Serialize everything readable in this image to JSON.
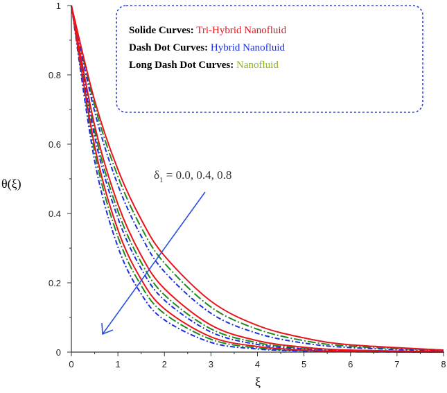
{
  "chart_data": {
    "type": "line",
    "title": "",
    "xlabel": "ξ",
    "ylabel": "θ(ξ)",
    "xlim": [
      0,
      8
    ],
    "ylim": [
      0,
      1
    ],
    "xticks": [
      "0",
      "1",
      "2",
      "3",
      "4",
      "5",
      "6",
      "7",
      "8"
    ],
    "yticks": [
      "0",
      "0.2",
      "0.4",
      "0.6",
      "0.8",
      "1"
    ],
    "x": [
      0,
      0.5,
      1,
      1.5,
      2,
      3,
      4,
      5,
      6,
      8
    ],
    "series": [
      {
        "name": "Tri-Hybrid Nanofluid, δ1=0.0",
        "group": "tri",
        "values": [
          1,
          0.726,
          0.527,
          0.383,
          0.278,
          0.147,
          0.077,
          0.041,
          0.021,
          0.006
        ]
      },
      {
        "name": "Tri-Hybrid Nanofluid, δ1=0.4",
        "group": "tri",
        "values": [
          1,
          0.654,
          0.427,
          0.279,
          0.183,
          0.078,
          0.033,
          0.014,
          0.006,
          0.001
        ]
      },
      {
        "name": "Tri-Hybrid Nanofluid, δ1=0.8",
        "group": "tri",
        "values": [
          1,
          0.595,
          0.353,
          0.21,
          0.125,
          0.044,
          0.016,
          0.006,
          0.002,
          0
        ]
      },
      {
        "name": "Hybrid Nanofluid, δ1=0.0",
        "group": "hybrid",
        "values": [
          1,
          0.694,
          0.482,
          0.335,
          0.232,
          0.112,
          0.054,
          0.026,
          0.013,
          0.003
        ]
      },
      {
        "name": "Hybrid Nanofluid, δ1=0.4",
        "group": "hybrid",
        "values": [
          1,
          0.622,
          0.387,
          0.241,
          0.15,
          0.058,
          0.022,
          0.009,
          0.003,
          0
        ]
      },
      {
        "name": "Hybrid Nanofluid, δ1=0.8",
        "group": "hybrid",
        "values": [
          1,
          0.552,
          0.304,
          0.168,
          0.093,
          0.028,
          0.009,
          0.003,
          0.001,
          0
        ]
      },
      {
        "name": "Nanofluid, δ1=0.0",
        "group": "nano",
        "values": [
          1,
          0.712,
          0.507,
          0.36,
          0.257,
          0.13,
          0.066,
          0.033,
          0.017,
          0.004
        ]
      },
      {
        "name": "Nanofluid, δ1=0.4",
        "group": "nano",
        "values": [
          1,
          0.638,
          0.407,
          0.259,
          0.165,
          0.067,
          0.027,
          0.011,
          0.005,
          0.001
        ]
      },
      {
        "name": "Nanofluid, δ1=0.8",
        "group": "nano",
        "values": [
          1,
          0.577,
          0.333,
          0.192,
          0.111,
          0.037,
          0.012,
          0.004,
          0.001,
          0
        ]
      }
    ],
    "styles": {
      "tri": {
        "color": "#e8141c",
        "dash": ""
      },
      "hybrid": {
        "color": "#1a2ee0",
        "dash": "7,3,2,3"
      },
      "nano": {
        "color": "#1e8a1e",
        "dash": "12,3,2,3"
      }
    },
    "legend": {
      "placement": "top-right",
      "entries": [
        {
          "label": "Solide Curves:",
          "value": "Tri-Hybrid Nanofluid",
          "color": "#e8141c"
        },
        {
          "label": "Dash Dot Curves:",
          "value": "Hybrid Nanofluid",
          "color": "#1a2ee0"
        },
        {
          "label": "Long Dash Dot Curves:",
          "value": "Nanofluid",
          "color": "#8cb41e"
        }
      ]
    },
    "annotation": {
      "symbol": "δ",
      "subscript": "1",
      "text": " = 0.0, 0.4, 0.8",
      "arrow_color": "#2a50e0"
    }
  }
}
